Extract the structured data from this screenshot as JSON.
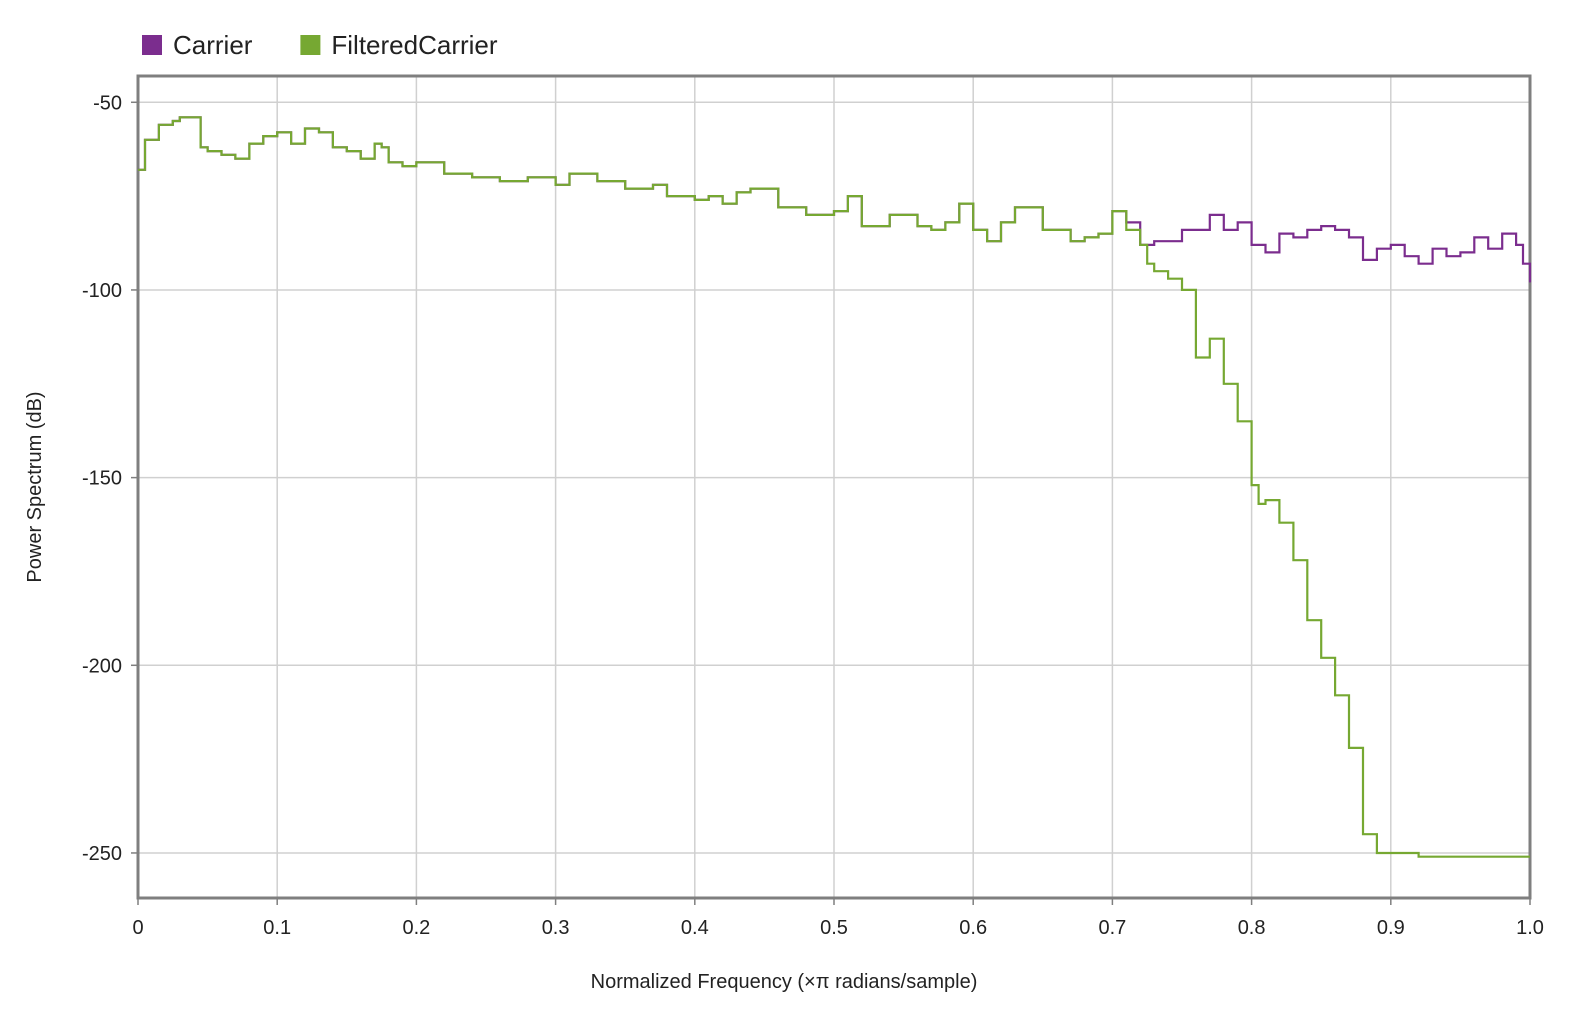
{
  "chart_data": {
    "type": "line",
    "title": "",
    "xlabel": "Normalized Frequency (×π radians/sample)",
    "ylabel": "Power Spectrum (dB)",
    "xlim": [
      0,
      1
    ],
    "ylim": [
      -262,
      -43
    ],
    "x_ticks": [
      0,
      0.1,
      0.2,
      0.3,
      0.4,
      0.5,
      0.6,
      0.7,
      0.8,
      0.9,
      1.0
    ],
    "x_tick_labels": [
      "0",
      "0.1",
      "0.2",
      "0.3",
      "0.4",
      "0.5",
      "0.6",
      "0.7",
      "0.8",
      "0.9",
      "1.0"
    ],
    "y_ticks": [
      -50,
      -100,
      -150,
      -200,
      -250
    ],
    "y_tick_labels": [
      "-50",
      "-100",
      "-150",
      "-200",
      "-250"
    ],
    "grid": true,
    "legend_position": "top-left",
    "series": [
      {
        "name": "Carrier",
        "color": "#7b2d8e",
        "x": [
          0,
          0.005,
          0.015,
          0.025,
          0.03,
          0.045,
          0.05,
          0.06,
          0.07,
          0.08,
          0.09,
          0.1,
          0.11,
          0.12,
          0.13,
          0.14,
          0.15,
          0.16,
          0.17,
          0.175,
          0.18,
          0.19,
          0.2,
          0.22,
          0.24,
          0.26,
          0.28,
          0.3,
          0.31,
          0.33,
          0.35,
          0.37,
          0.38,
          0.4,
          0.41,
          0.42,
          0.43,
          0.44,
          0.46,
          0.48,
          0.5,
          0.51,
          0.52,
          0.54,
          0.56,
          0.57,
          0.58,
          0.59,
          0.6,
          0.61,
          0.62,
          0.63,
          0.65,
          0.67,
          0.68,
          0.69,
          0.7,
          0.71,
          0.72,
          0.73,
          0.74,
          0.75,
          0.77,
          0.78,
          0.79,
          0.8,
          0.81,
          0.82,
          0.83,
          0.84,
          0.85,
          0.86,
          0.87,
          0.88,
          0.89,
          0.9,
          0.91,
          0.92,
          0.93,
          0.94,
          0.95,
          0.96,
          0.97,
          0.98,
          0.99,
          0.995,
          1.0
        ],
        "y": [
          -68,
          -60,
          -56,
          -55,
          -54,
          -62,
          -63,
          -64,
          -65,
          -61,
          -59,
          -58,
          -61,
          -57,
          -58,
          -62,
          -63,
          -65,
          -61,
          -62,
          -66,
          -67,
          -66,
          -69,
          -70,
          -71,
          -70,
          -72,
          -69,
          -71,
          -73,
          -72,
          -75,
          -76,
          -75,
          -77,
          -74,
          -73,
          -78,
          -80,
          -79,
          -75,
          -83,
          -80,
          -83,
          -84,
          -82,
          -77,
          -84,
          -87,
          -82,
          -78,
          -84,
          -87,
          -86,
          -85,
          -79,
          -82,
          -88,
          -87,
          -87,
          -84,
          -80,
          -84,
          -82,
          -88,
          -90,
          -85,
          -86,
          -84,
          -83,
          -84,
          -86,
          -92,
          -89,
          -88,
          -91,
          -93,
          -89,
          -91,
          -90,
          -86,
          -89,
          -85,
          -88,
          -93,
          -98
        ]
      },
      {
        "name": "FilteredCarrier",
        "color": "#76a832",
        "x": [
          0,
          0.005,
          0.015,
          0.025,
          0.03,
          0.045,
          0.05,
          0.06,
          0.07,
          0.08,
          0.09,
          0.1,
          0.11,
          0.12,
          0.13,
          0.14,
          0.15,
          0.16,
          0.17,
          0.175,
          0.18,
          0.19,
          0.2,
          0.22,
          0.24,
          0.26,
          0.28,
          0.3,
          0.31,
          0.33,
          0.35,
          0.37,
          0.38,
          0.4,
          0.41,
          0.42,
          0.43,
          0.44,
          0.46,
          0.48,
          0.5,
          0.51,
          0.52,
          0.54,
          0.56,
          0.57,
          0.58,
          0.59,
          0.6,
          0.61,
          0.62,
          0.63,
          0.65,
          0.67,
          0.68,
          0.69,
          0.7,
          0.71,
          0.72,
          0.725,
          0.73,
          0.74,
          0.75,
          0.76,
          0.77,
          0.78,
          0.79,
          0.8,
          0.805,
          0.81,
          0.82,
          0.83,
          0.84,
          0.85,
          0.86,
          0.87,
          0.88,
          0.89,
          0.9,
          0.92,
          0.95,
          0.98,
          1.0
        ],
        "y": [
          -68,
          -60,
          -56,
          -55,
          -54,
          -62,
          -63,
          -64,
          -65,
          -61,
          -59,
          -58,
          -61,
          -57,
          -58,
          -62,
          -63,
          -65,
          -61,
          -62,
          -66,
          -67,
          -66,
          -69,
          -70,
          -71,
          -70,
          -72,
          -69,
          -71,
          -73,
          -72,
          -75,
          -76,
          -75,
          -77,
          -74,
          -73,
          -78,
          -80,
          -79,
          -75,
          -83,
          -80,
          -83,
          -84,
          -82,
          -77,
          -84,
          -87,
          -82,
          -78,
          -84,
          -87,
          -86,
          -85,
          -79,
          -84,
          -88,
          -93,
          -95,
          -97,
          -100,
          -118,
          -113,
          -125,
          -135,
          -152,
          -157,
          -156,
          -162,
          -172,
          -188,
          -198,
          -208,
          -222,
          -245,
          -250,
          -250,
          -251,
          -251,
          -251,
          -251
        ]
      }
    ]
  }
}
